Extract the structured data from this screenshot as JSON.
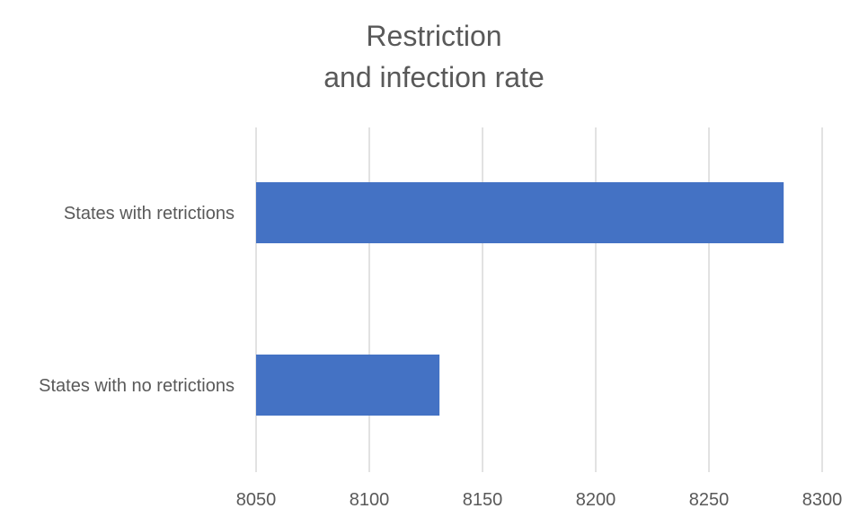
{
  "chart_data": {
    "type": "bar",
    "orientation": "horizontal",
    "title_lines": [
      "Restriction",
      "and infection rate"
    ],
    "categories": [
      "States with retrictions",
      "States with no retrictions"
    ],
    "values": [
      8283,
      8131
    ],
    "xlim": [
      8050,
      8300
    ],
    "xticks": [
      "8050",
      "8100",
      "8150",
      "8200",
      "8250",
      "8300"
    ],
    "xlabel": "",
    "ylabel": "",
    "grid": "vertical",
    "legend": "none",
    "bar_color": "#4472C4",
    "grid_color": "#D9D9D9",
    "text_color": "#595959"
  }
}
